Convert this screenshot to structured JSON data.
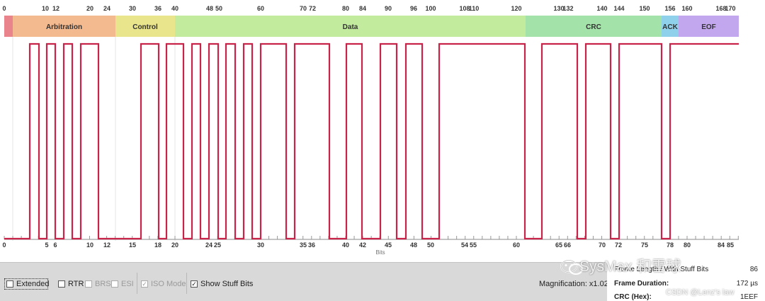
{
  "colors": {
    "signal": "#c8244a",
    "sof": "#e9848d",
    "arbitration": "#f3b98f",
    "control": "#e9e58c",
    "data": "#c2eb9e",
    "crc": "#a3e2a8",
    "ack": "#8fd0ea",
    "eof": "#c3a7ee"
  },
  "segments": [
    {
      "name": "SOF",
      "label": "",
      "color": "sof"
    },
    {
      "name": "Arbitration",
      "label": "Arbitration",
      "color": "arbitration"
    },
    {
      "name": "Control",
      "label": "Control",
      "color": "control"
    },
    {
      "name": "Data",
      "label": "Data",
      "color": "data"
    },
    {
      "name": "CRC",
      "label": "CRC",
      "color": "crc"
    },
    {
      "name": "ACK",
      "label": "ACK",
      "color": "ack"
    },
    {
      "name": "EOF",
      "label": "EOF",
      "color": "eof"
    }
  ],
  "top_tick_labels": [
    "0",
    "10",
    "12",
    "20",
    "24",
    "30",
    "36",
    "40",
    "48",
    "50",
    "60",
    "70",
    "72",
    "80",
    "84",
    "90",
    "96",
    "100",
    "108",
    "110",
    "120",
    "130",
    "132",
    "140",
    "144",
    "150",
    "156",
    "160",
    "168",
    "170"
  ],
  "bottom_tick_labels": [
    "0",
    "5",
    "6",
    "10",
    "12",
    "15",
    "18",
    "20",
    "24",
    "25",
    "30",
    "35",
    "36",
    "40",
    "42",
    "45",
    "48",
    "50",
    "54",
    "55",
    "60",
    "65",
    "66",
    "70",
    "72",
    "75",
    "78",
    "80",
    "84",
    "85"
  ],
  "axis_label": "Bits",
  "options": {
    "extended": {
      "label": "Extended",
      "checked": false
    },
    "rtr": {
      "label": "RTR",
      "checked": false
    },
    "brs": {
      "label": "BRS",
      "checked": false
    },
    "esi": {
      "label": "ESI",
      "checked": false
    },
    "iso_mode": {
      "label": "ISO Mode",
      "checked": true
    },
    "show_stuff_bits": {
      "label": "Show Stuff Bits",
      "checked": true
    }
  },
  "magnification": "Magnification: x1.02",
  "info": {
    "frame_length_label": "Frame Length / With Stuff Bits",
    "frame_length_value": "86",
    "frame_duration_label": "Frame Duration:",
    "frame_duration_value": "172 µs",
    "crc_label": "CRC (Hex):",
    "crc_value": "1EEF"
  },
  "watermark": {
    "main": "SysMax 和雪球",
    "sub": "CSDN @Lenz's law"
  }
}
